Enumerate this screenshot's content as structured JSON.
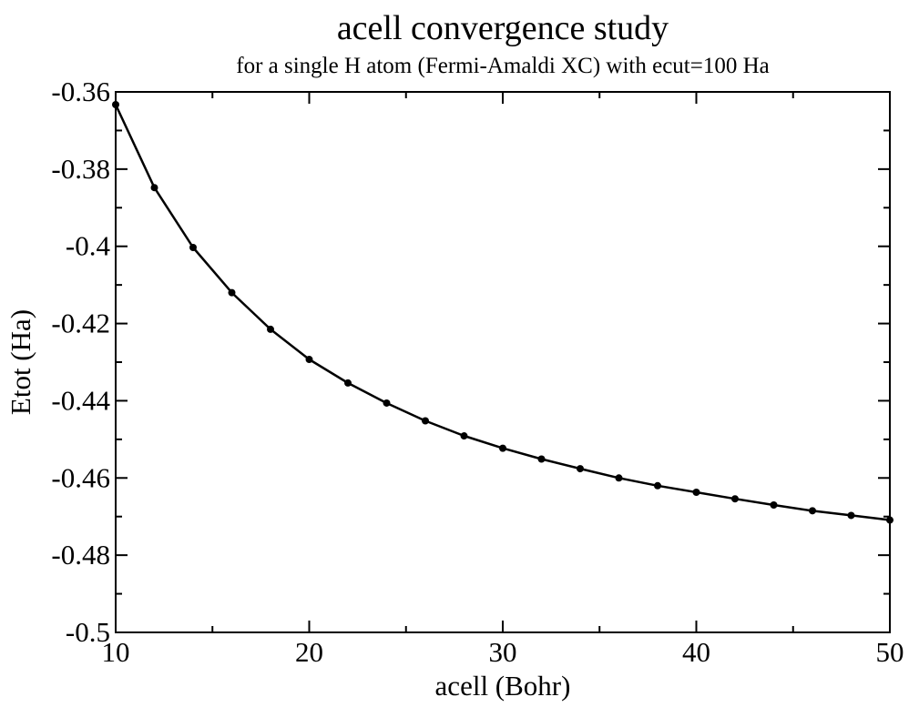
{
  "chart_data": {
    "type": "line",
    "title": "acell convergence study",
    "subtitle": "for a single H atom (Fermi-Amaldi XC) with ecut=100 Ha",
    "xlabel": "acell (Bohr)",
    "ylabel": "Etot (Ha)",
    "xlim": [
      10,
      50
    ],
    "ylim": [
      -0.5,
      -0.36
    ],
    "x_major_ticks": [
      10,
      20,
      30,
      40,
      50
    ],
    "x_tick_labels": [
      "10",
      "20",
      "30",
      "40",
      "50"
    ],
    "y_major_ticks": [
      -0.5,
      -0.48,
      -0.46,
      -0.44,
      -0.42,
      -0.4,
      -0.38,
      -0.36
    ],
    "y_tick_labels": [
      "-0.5",
      "-0.48",
      "-0.46",
      "-0.44",
      "-0.42",
      "-0.4",
      "-0.38",
      "-0.36"
    ],
    "grid": false,
    "line_color": "#000000",
    "marker": "circle",
    "series": [
      {
        "x": [
          10,
          12,
          14,
          16,
          18,
          20,
          22,
          24,
          26,
          28,
          30,
          32,
          34,
          36,
          38,
          40,
          42,
          44,
          46,
          48,
          50
        ],
        "values": [
          -0.3633,
          -0.3848,
          -0.4003,
          -0.412,
          -0.4215,
          -0.4293,
          -0.4354,
          -0.4406,
          -0.4452,
          -0.4491,
          -0.4523,
          -0.4551,
          -0.4576,
          -0.46,
          -0.462,
          -0.4637,
          -0.4654,
          -0.467,
          -0.4685,
          -0.4697,
          -0.4709
        ]
      }
    ]
  }
}
